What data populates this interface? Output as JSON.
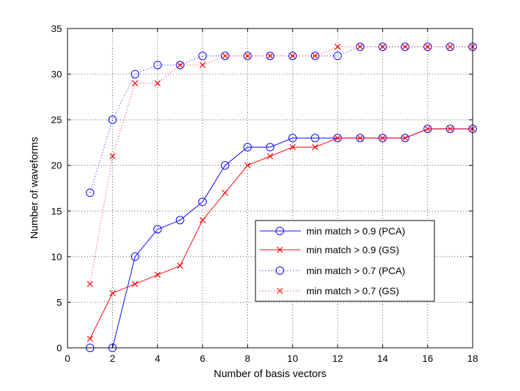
{
  "chart_data": {
    "type": "line",
    "title": "",
    "xlabel": "Number of basis vectors",
    "ylabel": "Number of waveforms",
    "xlim": [
      0,
      18
    ],
    "ylim": [
      0,
      35
    ],
    "xticks": [
      0,
      2,
      4,
      6,
      8,
      10,
      12,
      14,
      16,
      18
    ],
    "yticks": [
      0,
      5,
      10,
      15,
      20,
      25,
      30,
      35
    ],
    "grid": true,
    "legend_position": "lower-right",
    "x": [
      1,
      2,
      3,
      4,
      5,
      6,
      7,
      8,
      9,
      10,
      11,
      12,
      13,
      14,
      15,
      16,
      17,
      18
    ],
    "series": [
      {
        "name": "min match > 0.9 (PCA)",
        "color": "#0000ff",
        "line": "solid",
        "marker": "circle",
        "values": [
          0,
          0,
          10,
          13,
          14,
          16,
          20,
          22,
          22,
          23,
          23,
          23,
          23,
          23,
          23,
          24,
          24,
          24
        ]
      },
      {
        "name": "min match > 0.9 (GS)",
        "color": "#ff0000",
        "line": "solid",
        "marker": "cross",
        "values": [
          1,
          6,
          7,
          8,
          9,
          14,
          17,
          20,
          21,
          22,
          22,
          23,
          23,
          23,
          23,
          24,
          24,
          24
        ]
      },
      {
        "name": "min match > 0.7 (PCA)",
        "color": "#0000ff",
        "line": "dotted",
        "marker": "circle",
        "values": [
          17,
          25,
          30,
          31,
          31,
          32,
          32,
          32,
          32,
          32,
          32,
          32,
          33,
          33,
          33,
          33,
          33,
          33
        ]
      },
      {
        "name": "min match > 0.7 (GS)",
        "color": "#ff0000",
        "line": "dotted",
        "marker": "cross",
        "values": [
          7,
          21,
          29,
          29,
          31,
          31,
          32,
          32,
          32,
          32,
          32,
          33,
          33,
          33,
          33,
          33,
          33,
          33
        ]
      }
    ]
  }
}
